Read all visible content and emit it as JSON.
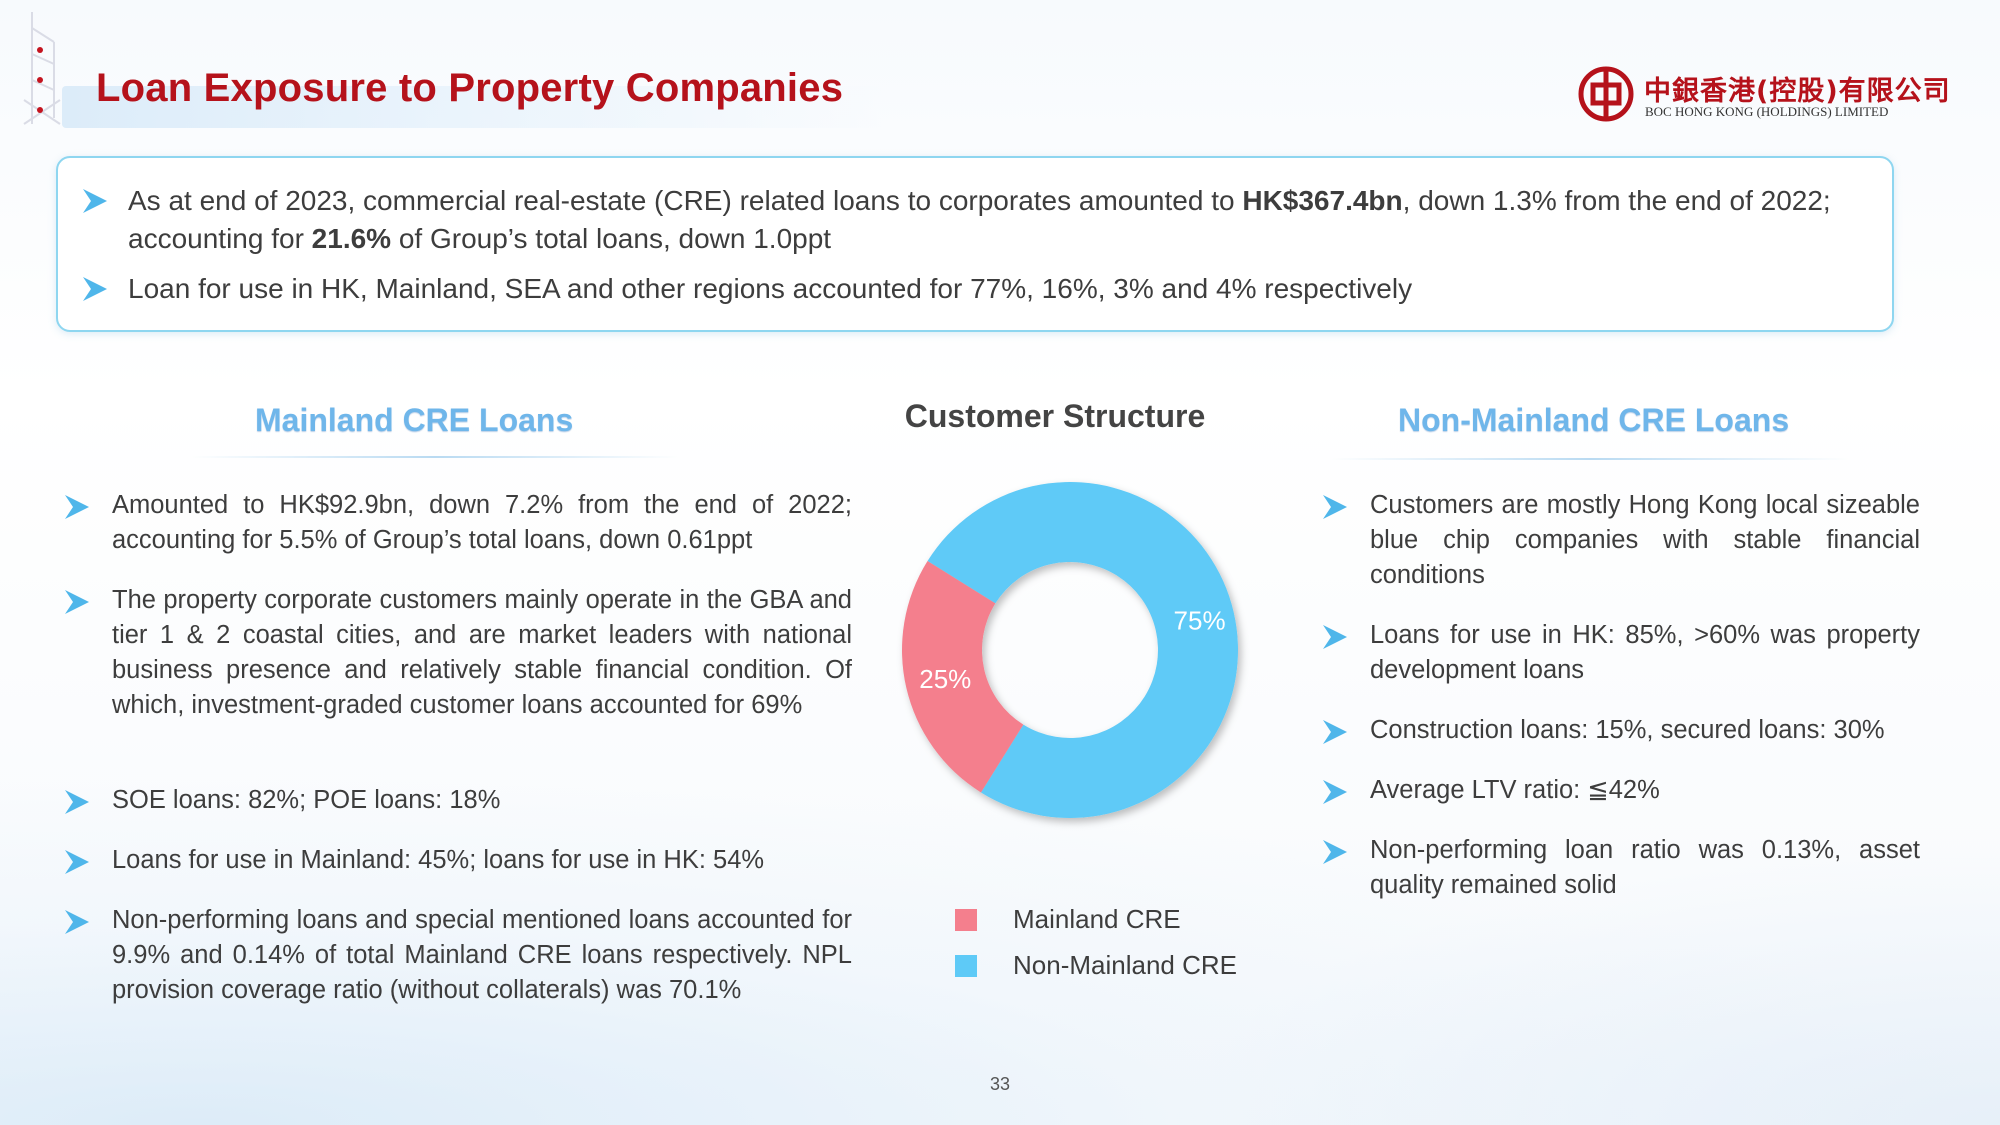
{
  "header": {
    "title": "Loan Exposure to Property Companies",
    "logo_cn": "中銀香港(控股)有限公司",
    "logo_en": "BOC HONG KONG (HOLDINGS) LIMITED"
  },
  "summary": {
    "b1_pre": "As at end of 2023, commercial real-estate (CRE) related loans to corporates amounted to ",
    "b1_bold": "HK$367.4bn",
    "b1_post": ", down 1.3% from the end of 2022;",
    "b1_line2_pre": "accounting for ",
    "b1_line2_bold": "21.6%",
    "b1_line2_post": " of Group’s total loans, down 1.0ppt",
    "b2": "Loan for use in HK, Mainland, SEA and other regions accounted for 77%, 16%, 3% and 4% respectively"
  },
  "mainland": {
    "title": "Mainland CRE Loans",
    "items": [
      "Amounted to HK$92.9bn, down 7.2% from the end of 2022; accounting for 5.5% of Group’s total loans, down 0.61ppt",
      "The property corporate customers mainly operate in the GBA and tier 1 & 2 coastal cities, and are market leaders with national business presence and relatively stable financial condition. Of which, investment-graded customer loans accounted for 69%",
      "SOE loans: 82%; POE loans: 18%",
      "Loans for use in Mainland: 45%; loans for use in HK: 54%",
      "Non-performing loans and special mentioned loans accounted for 9.9% and 0.14% of total Mainland CRE loans respectively. NPL provision coverage ratio (without collaterals) was 70.1%"
    ]
  },
  "non_mainland": {
    "title": "Non-Mainland CRE Loans",
    "items": [
      "Customers are mostly Hong Kong local sizeable blue chip companies with stable financial conditions",
      "Loans for use in HK: 85%, >60% was property development loans",
      "Construction loans: 15%, secured loans: 30%",
      "Average LTV ratio: ≦42%",
      "Non-performing loan ratio was 0.13%, asset quality remained solid"
    ]
  },
  "chart_data": {
    "type": "pie",
    "style": "donut",
    "title": "Customer Structure",
    "categories": [
      "Mainland CRE",
      "Non-Mainland CRE"
    ],
    "values": [
      25,
      75
    ],
    "data_labels": [
      "25%",
      "75%"
    ],
    "colors": [
      "#f47f8d",
      "#5ecaf7"
    ],
    "legend_position": "bottom"
  },
  "footer": {
    "page_number": "33"
  }
}
